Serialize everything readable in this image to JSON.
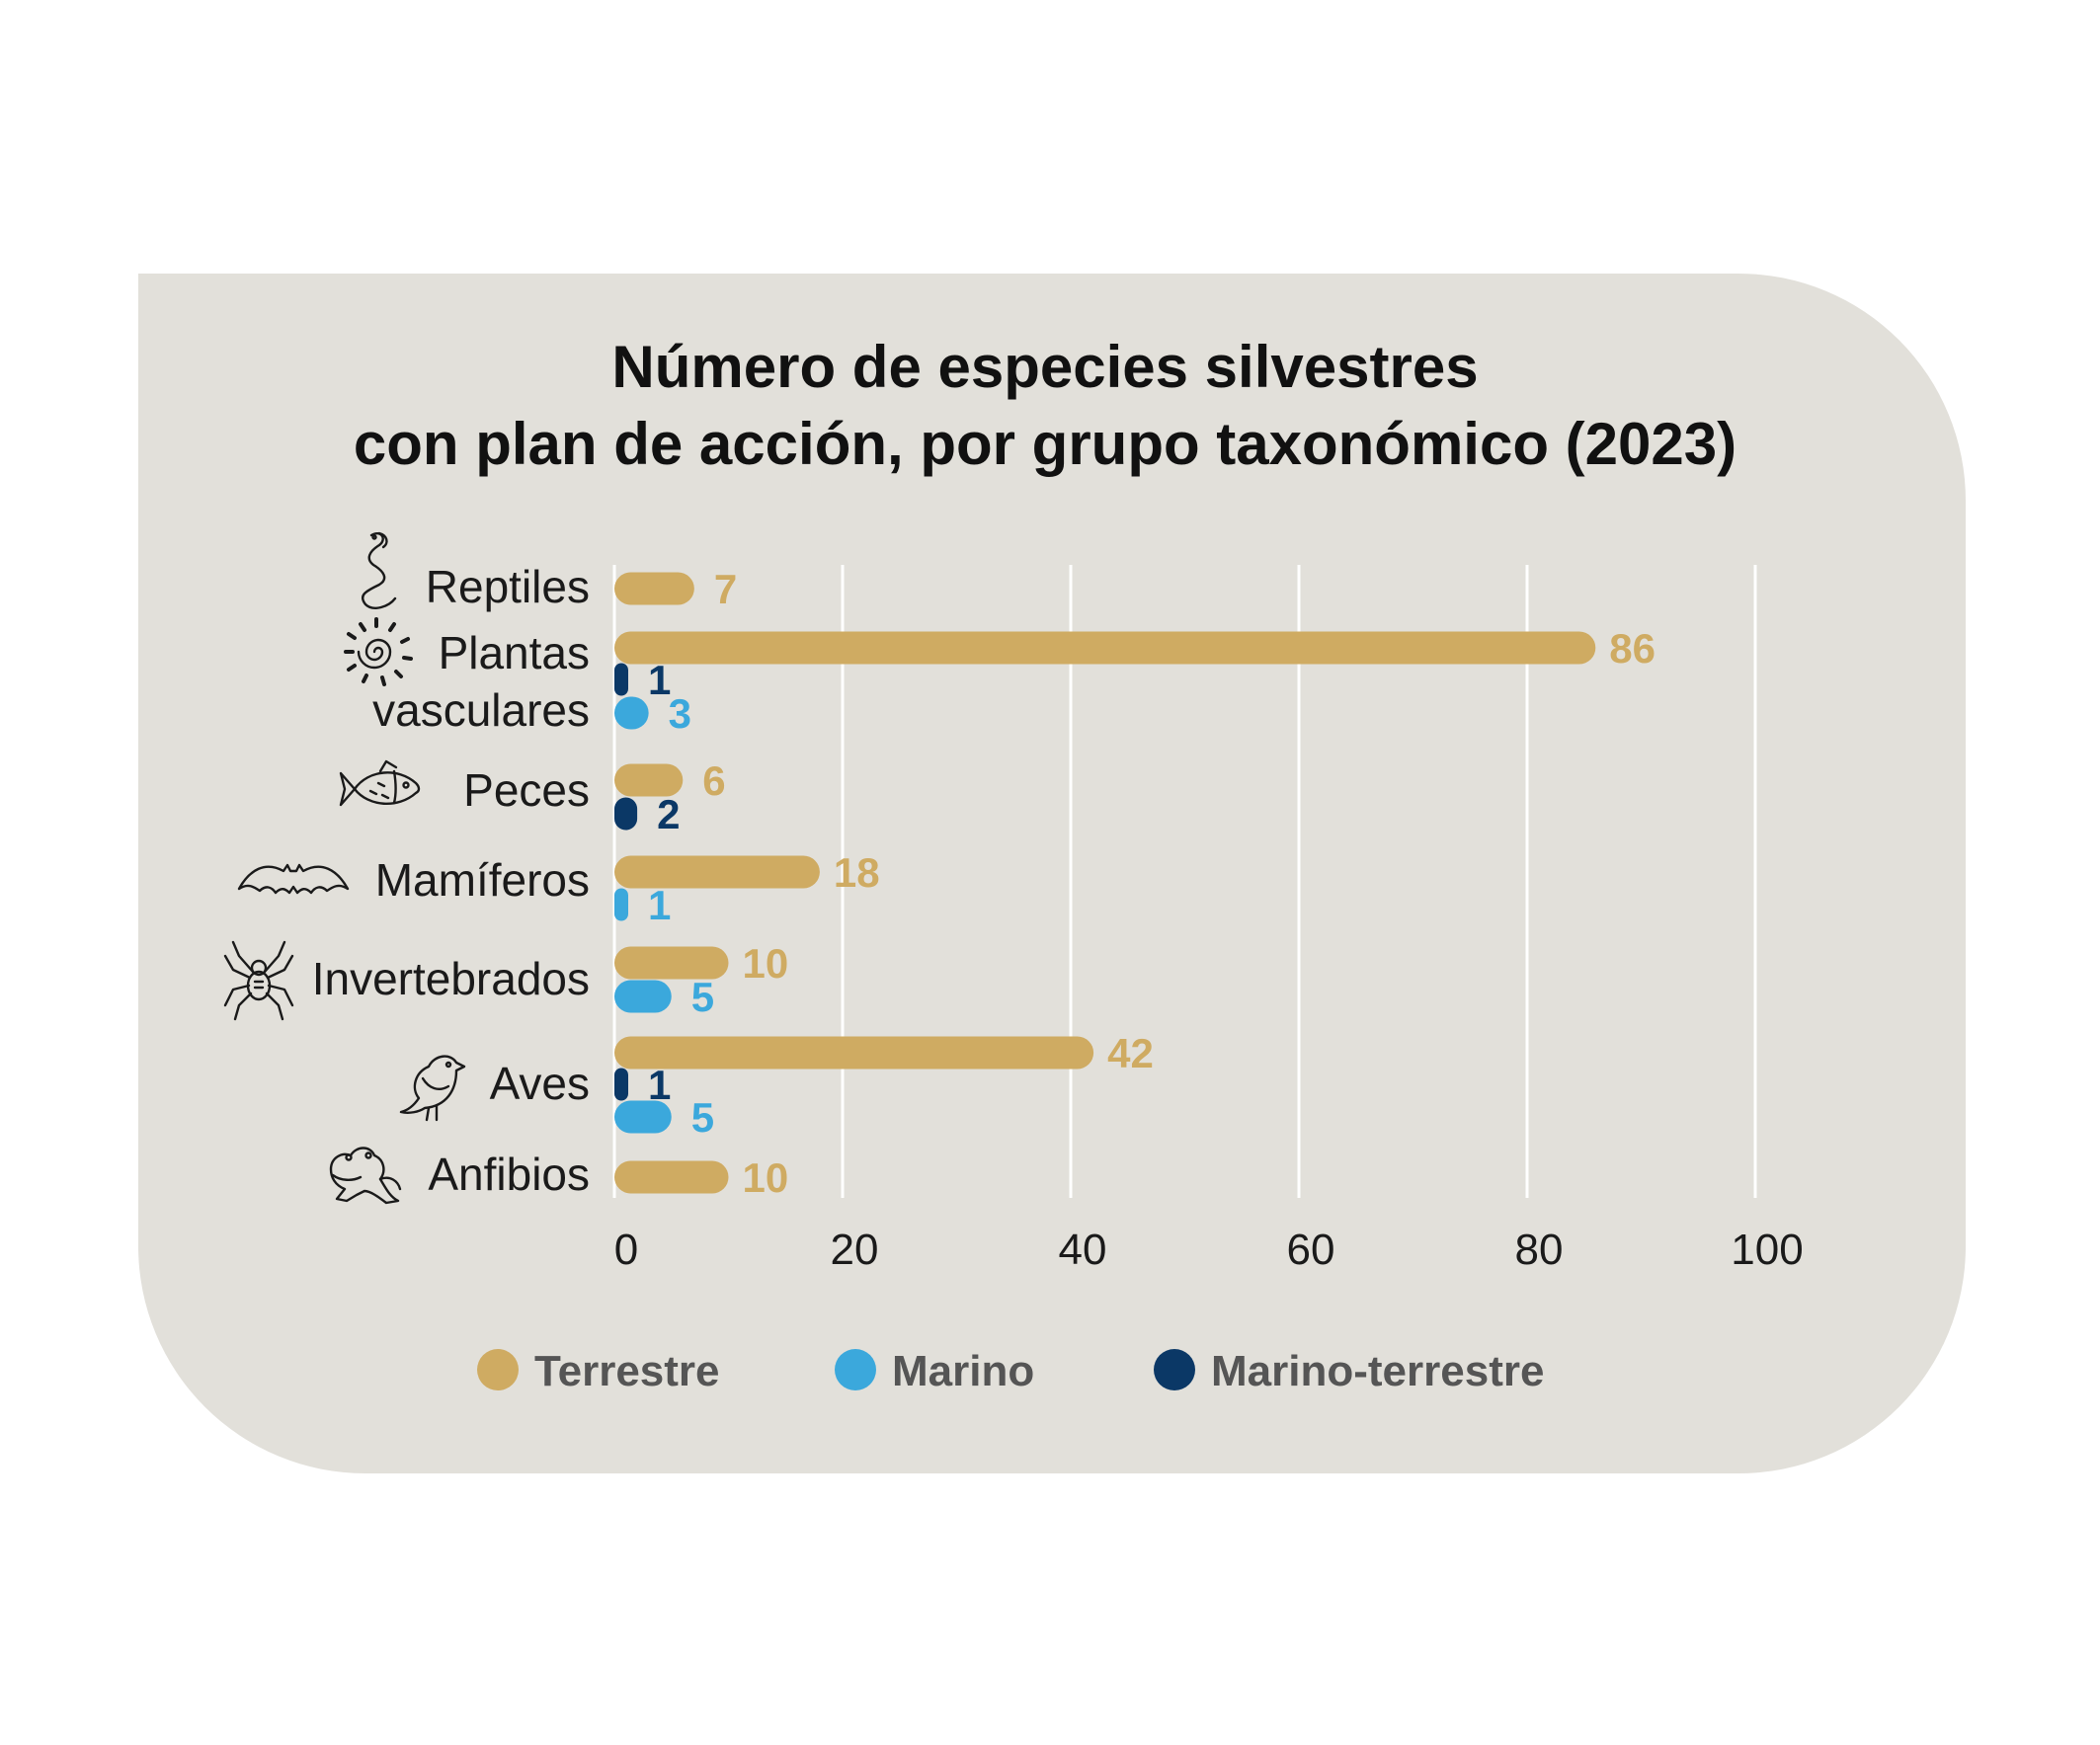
{
  "chart_data": {
    "type": "bar",
    "orientation": "horizontal",
    "title_lines": [
      "Número de especies silvestres",
      "con plan de acción, por grupo taxonómico (2023)"
    ],
    "categories": [
      {
        "lines": [
          "Reptiles"
        ],
        "icon": "snake-icon"
      },
      {
        "lines": [
          "Plantas",
          "vasculares"
        ],
        "icon": "fern-spiral-icon"
      },
      {
        "lines": [
          "Peces"
        ],
        "icon": "fish-icon"
      },
      {
        "lines": [
          "Mamíferos"
        ],
        "icon": "bat-icon"
      },
      {
        "lines": [
          "Invertebrados"
        ],
        "icon": "spider-icon"
      },
      {
        "lines": [
          "Aves"
        ],
        "icon": "bird-icon"
      },
      {
        "lines": [
          "Anfibios"
        ],
        "icon": "frog-icon"
      }
    ],
    "series": [
      {
        "name": "Terrestre",
        "color": "#cfab62",
        "values": [
          7,
          86,
          6,
          18,
          10,
          42,
          10
        ]
      },
      {
        "name": "Marino-terrestre",
        "color": "#0b3866",
        "values": [
          null,
          1,
          2,
          null,
          null,
          1,
          null
        ]
      },
      {
        "name": "Marino",
        "color": "#3ba8dc",
        "values": [
          null,
          3,
          null,
          1,
          5,
          5,
          null
        ]
      }
    ],
    "legend_order": [
      "Terrestre",
      "Marino",
      "Marino-terrestre"
    ],
    "xlim": [
      0,
      100
    ],
    "xticks": [
      0,
      20,
      40,
      60,
      80,
      100
    ],
    "grid": true,
    "legend_position": "bottom"
  }
}
